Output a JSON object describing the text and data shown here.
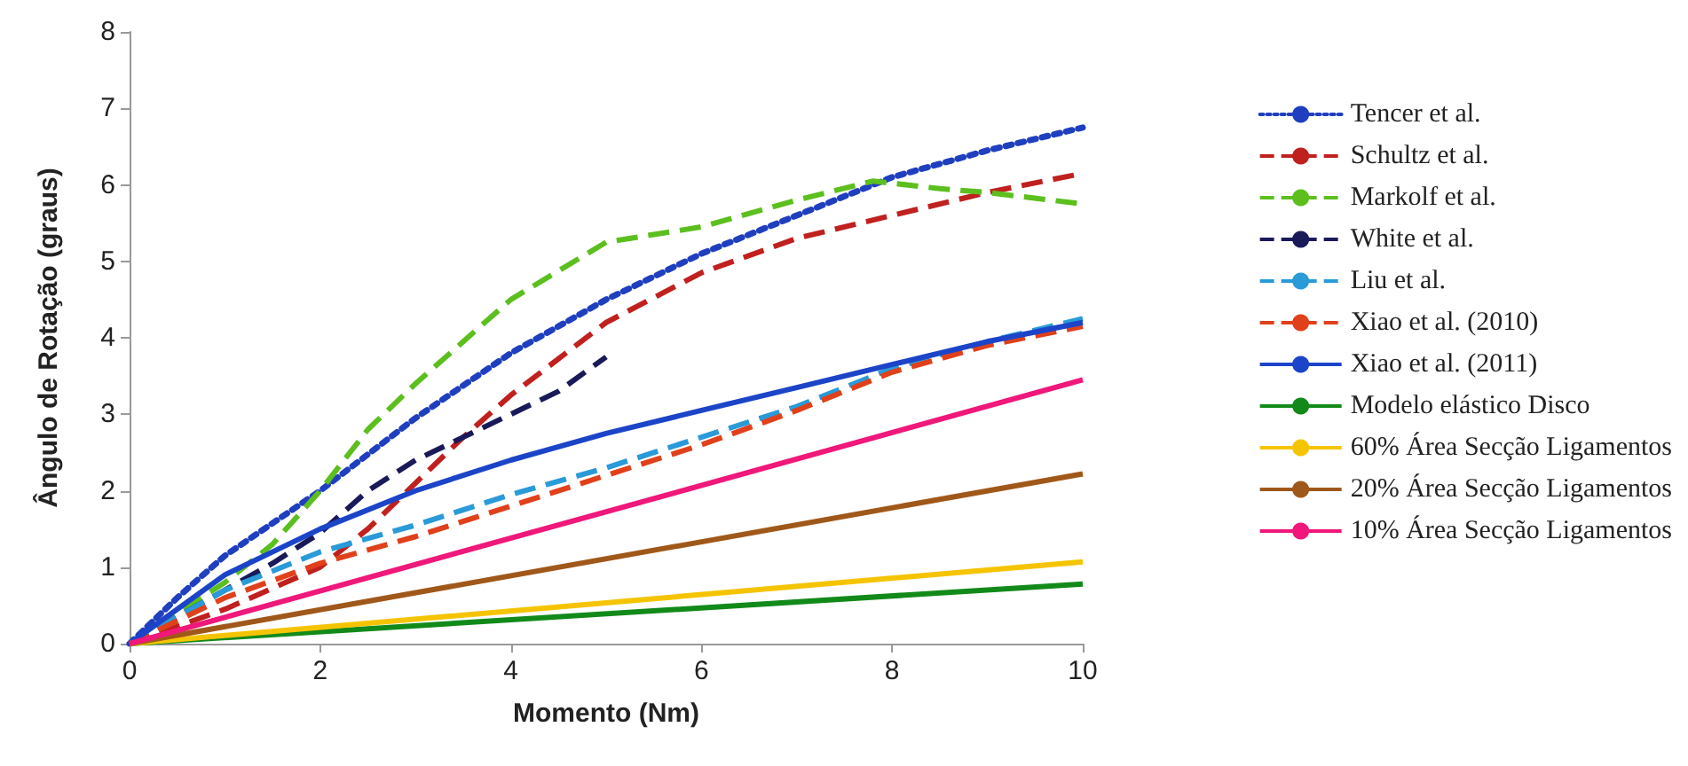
{
  "chart_data": {
    "type": "line",
    "xlabel": "Momento (Nm)",
    "ylabel": "Ângulo de Rotação (graus)",
    "xlim": [
      0,
      10
    ],
    "xticks": [
      0,
      2,
      4,
      6,
      8,
      10
    ],
    "ylim": [
      0,
      8
    ],
    "yticks": [
      0,
      1,
      2,
      3,
      4,
      5,
      6,
      7,
      8
    ],
    "grid": false,
    "legend": "right",
    "marker": "none",
    "series": [
      {
        "name": "Tencer et al.",
        "color": "#1f3fbf",
        "line_style": "dotted",
        "x": [
          0,
          0.5,
          1,
          2,
          3,
          4,
          5,
          6,
          7,
          8,
          9,
          10
        ],
        "values": [
          0,
          0.6,
          1.15,
          2.0,
          2.95,
          3.8,
          4.5,
          5.1,
          5.6,
          6.1,
          6.45,
          6.75
        ]
      },
      {
        "name": "Schultz et al.",
        "color": "#c0201e",
        "line_style": "dashed",
        "x": [
          0,
          1,
          2,
          2.5,
          3,
          3.5,
          4,
          5,
          6,
          7,
          8,
          9,
          10
        ],
        "values": [
          0,
          0.45,
          1.0,
          1.5,
          2.1,
          2.7,
          3.25,
          4.2,
          4.85,
          5.3,
          5.6,
          5.9,
          6.15
        ]
      },
      {
        "name": "Markolf et al.",
        "color": "#5cbf1e",
        "line_style": "dashed",
        "x": [
          0,
          1,
          1.5,
          2,
          2.5,
          3,
          4,
          5,
          6,
          7,
          7.8,
          8.5,
          9,
          10
        ],
        "values": [
          0,
          0.8,
          1.3,
          2.0,
          2.8,
          3.4,
          4.5,
          5.25,
          5.45,
          5.8,
          6.05,
          5.95,
          5.9,
          5.75
        ]
      },
      {
        "name": "White et al.",
        "color": "#1a1a5a",
        "line_style": "dashed",
        "x": [
          0,
          1,
          1.5,
          2,
          2.5,
          3,
          3.5,
          4,
          4.5,
          5
        ],
        "values": [
          0,
          0.7,
          1.05,
          1.45,
          2.0,
          2.4,
          2.7,
          3.0,
          3.3,
          3.75
        ]
      },
      {
        "name": "Liu et al.",
        "color": "#2a9ad8",
        "line_style": "dashed",
        "x": [
          0,
          1,
          2,
          3,
          4,
          5,
          6,
          7,
          8,
          9,
          10
        ],
        "values": [
          0,
          0.7,
          1.2,
          1.55,
          1.95,
          2.3,
          2.7,
          3.1,
          3.6,
          3.95,
          4.25
        ]
      },
      {
        "name": "Xiao et al. (2010)",
        "color": "#e0401a",
        "line_style": "dashed",
        "x": [
          0,
          1,
          2,
          3,
          4,
          5,
          6,
          7,
          8,
          9,
          10
        ],
        "values": [
          0,
          0.6,
          1.05,
          1.4,
          1.8,
          2.2,
          2.6,
          3.05,
          3.55,
          3.9,
          4.15
        ]
      },
      {
        "name": "Xiao et al. (2011)",
        "color": "#1c44c8",
        "line_style": "solid",
        "x": [
          0,
          1,
          2,
          3,
          4,
          5,
          6,
          7,
          8,
          9,
          10
        ],
        "values": [
          0,
          0.9,
          1.5,
          2.0,
          2.4,
          2.75,
          3.05,
          3.35,
          3.65,
          3.95,
          4.2
        ]
      },
      {
        "name": "Modelo elástico Disco",
        "color": "#128a1a",
        "line_style": "solid",
        "x": [
          0,
          10
        ],
        "values": [
          0,
          0.78
        ]
      },
      {
        "name": "60% Área Secção Ligamentos",
        "color": "#f5c400",
        "line_style": "solid",
        "x": [
          0,
          10
        ],
        "values": [
          0,
          1.07
        ]
      },
      {
        "name": "20% Área Secção Ligamentos",
        "color": "#a0581a",
        "line_style": "solid",
        "x": [
          0,
          10
        ],
        "values": [
          0,
          2.22
        ]
      },
      {
        "name": "10% Área Secção Ligamentos",
        "color": "#f0187a",
        "line_style": "solid",
        "x": [
          0,
          10
        ],
        "values": [
          0,
          3.45
        ]
      }
    ]
  }
}
